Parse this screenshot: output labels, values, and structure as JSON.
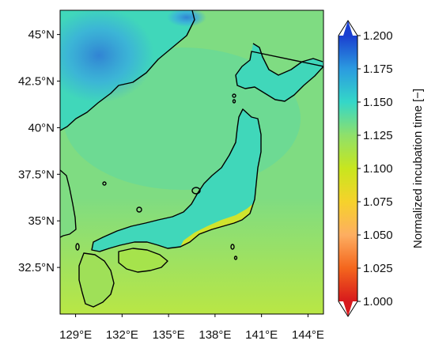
{
  "figure": {
    "map_extent": {
      "lon_min": 128.0,
      "lon_max": 145.0,
      "lat_min": 30.0,
      "lat_max": 46.3
    },
    "lon_ticks": [
      {
        "value": 129,
        "label": "129°E"
      },
      {
        "value": 132,
        "label": "132°E"
      },
      {
        "value": 135,
        "label": "135°E"
      },
      {
        "value": 138,
        "label": "138°E"
      },
      {
        "value": 141,
        "label": "141°E"
      },
      {
        "value": 144,
        "label": "144°E"
      }
    ],
    "lat_ticks": [
      {
        "value": 45.0,
        "label": "45°N"
      },
      {
        "value": 42.5,
        "label": "42.5°N"
      },
      {
        "value": 40.0,
        "label": "40°N"
      },
      {
        "value": 37.5,
        "label": "37.5°N"
      },
      {
        "value": 35.0,
        "label": "35°N"
      },
      {
        "value": 32.5,
        "label": "32.5°N"
      }
    ],
    "colorbar": {
      "title": "Normalized incubation time [−]",
      "vmin": 1.0,
      "vmax": 1.2,
      "extend": "both",
      "ticks": [
        "1.000",
        "1.025",
        "1.050",
        "1.075",
        "1.100",
        "1.125",
        "1.150",
        "1.175",
        "1.200"
      ],
      "colors": [
        "#d7191c",
        "#f4661d",
        "#fdae61",
        "#f6d22b",
        "#c8e61e",
        "#8fe06a",
        "#34d7c8",
        "#2b9be0",
        "#1a3fd0"
      ]
    },
    "field_colors": {
      "sea_base": "#7fdc82",
      "sea_south": "#c3e83a",
      "land_base": "#40d7ba",
      "land_northwest": "#3aa9e0",
      "land_peak": "#2f7ad6",
      "pacific_coast": "#d0e42e",
      "coastline": "#000000"
    }
  }
}
